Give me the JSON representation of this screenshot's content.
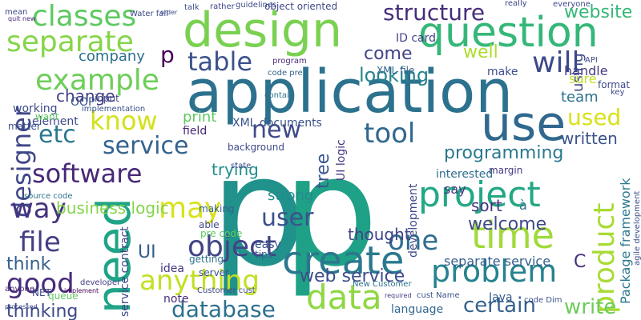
{
  "words": [
    "p",
    "p",
    "application",
    "design",
    "question",
    "use",
    "classes",
    "separate",
    "example",
    "table",
    "will",
    "structure",
    "project",
    "time",
    "need",
    "create",
    "data",
    "problem",
    "object",
    "database",
    "anything",
    "user",
    "software",
    "service",
    "new",
    "tool",
    "know",
    "etc",
    "designer",
    "way",
    "may",
    "file",
    "good",
    "one",
    "product",
    "used",
    "written",
    "programming",
    "website",
    "well",
    "looking",
    "come",
    "company",
    "business logic",
    "change",
    "print",
    "thinking",
    "think",
    "web service",
    "separate service",
    "certain",
    "write",
    "welcome",
    "sort",
    "say",
    "strong",
    "trying",
    "thought",
    "team",
    "make",
    "handle",
    "ID card",
    "XML file",
    "OOP",
    "input",
    "working",
    "Java",
    "language",
    "note",
    "tips",
    "C",
    "UI",
    "field",
    "background",
    "interested",
    "margin",
    "Package framework",
    "tree",
    "UI logic",
    "development",
    "p",
    "à",
    "XML documents",
    "object oriented",
    "code pre",
    "program",
    "contain",
    "using",
    "service contract",
    "agile development",
    "sure",
    "element",
    "want",
    "matter",
    "source code",
    "developer",
    "implement",
    "processed",
    "easy",
    "idea",
    "queue",
    "NET",
    "anyone",
    "cust Name",
    "Customer cust",
    "New Customer",
    "code Dim",
    "required",
    "state",
    "server",
    "getting",
    "able",
    "making",
    "pre code",
    "implementation",
    "guidelines",
    "talk",
    "rather",
    "mean",
    "quit new",
    "Water fall",
    "order",
    "really",
    "everyone",
    "API",
    "format",
    "key"
  ]
}
